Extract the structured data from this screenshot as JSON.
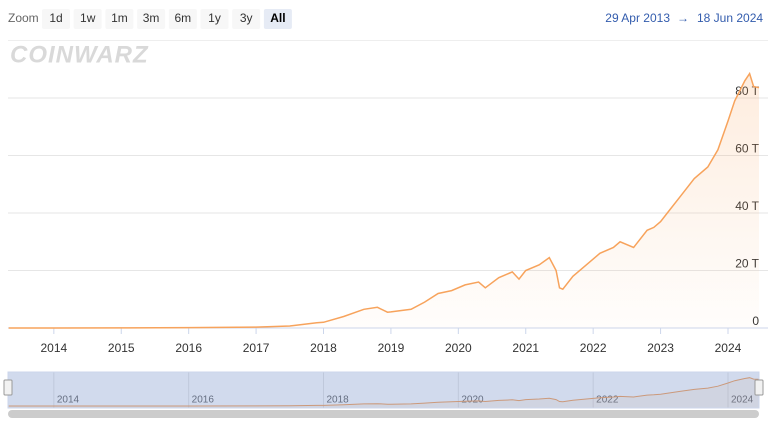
{
  "zoom": {
    "label": "Zoom",
    "buttons": [
      "1d",
      "1w",
      "1m",
      "3m",
      "6m",
      "1y",
      "3y",
      "All"
    ],
    "selected": 7
  },
  "range": {
    "from": "29 Apr 2013",
    "arrow": "→",
    "to": "18 Jun 2024"
  },
  "watermark": "COINWARZ",
  "chart_data": {
    "type": "area",
    "x": [
      2013.33,
      2014.0,
      2015.0,
      2016.0,
      2017.0,
      2017.5,
      2017.9,
      2018.0,
      2018.3,
      2018.6,
      2018.8,
      2018.95,
      2019.0,
      2019.3,
      2019.5,
      2019.7,
      2019.9,
      2020.1,
      2020.3,
      2020.4,
      2020.6,
      2020.8,
      2020.9,
      2021.0,
      2021.2,
      2021.35,
      2021.45,
      2021.5,
      2021.55,
      2021.7,
      2021.9,
      2022.1,
      2022.3,
      2022.4,
      2022.6,
      2022.8,
      2022.9,
      2023.0,
      2023.1,
      2023.3,
      2023.5,
      2023.7,
      2023.85,
      2024.0,
      2024.1,
      2024.25,
      2024.32,
      2024.38,
      2024.46
    ],
    "values": [
      0,
      0.01,
      0.05,
      0.15,
      0.3,
      0.7,
      1.8,
      2.0,
      4,
      6.5,
      7.2,
      5.5,
      5.6,
      6.5,
      9,
      12,
      13,
      15,
      16,
      14,
      17.5,
      19.5,
      17,
      20,
      22,
      24.5,
      20,
      14,
      13.5,
      18,
      22,
      26,
      28,
      30,
      28,
      34,
      35,
      37,
      40,
      46,
      52,
      56,
      62,
      72,
      79,
      86,
      88.5,
      84,
      83.6
    ],
    "color": "#f7a35c",
    "xlim": [
      2013.32,
      2024.46
    ],
    "xticks": [
      2014,
      2015,
      2016,
      2017,
      2018,
      2019,
      2020,
      2021,
      2022,
      2023,
      2024
    ],
    "ylim": [
      0,
      100
    ],
    "yticks": [
      0,
      {
        "value": 20,
        "label": "20 T"
      },
      {
        "value": 40,
        "label": "40 T"
      },
      {
        "value": 60,
        "label": "60 T"
      },
      {
        "value": 80,
        "label": "80 T"
      }
    ],
    "grid": true,
    "navigator": {
      "xticks": [
        2014,
        2016,
        2018,
        2020,
        2022,
        2024
      ]
    }
  }
}
